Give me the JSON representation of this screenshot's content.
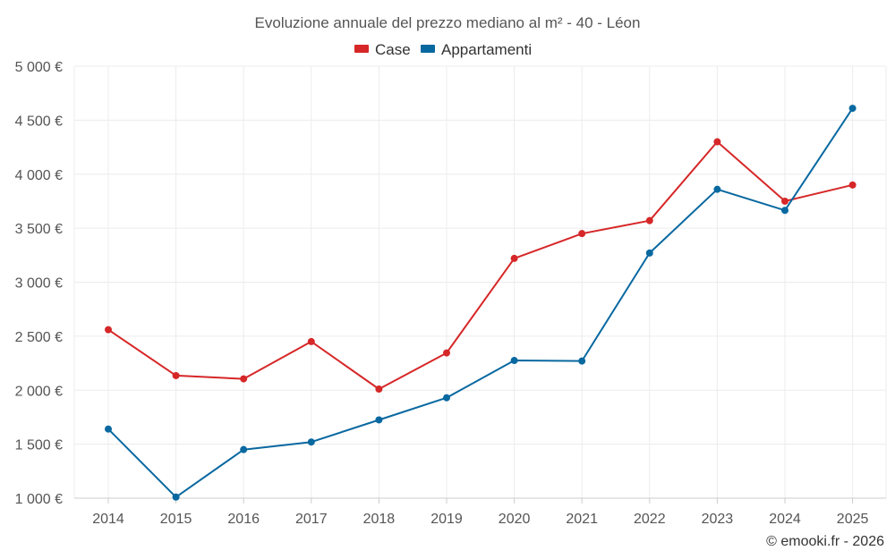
{
  "chart_data": {
    "type": "line",
    "title": "Evoluzione annuale del prezzo mediano al m² - 40 - Léon",
    "xlabel": "",
    "ylabel": "",
    "categories": [
      "2014",
      "2015",
      "2016",
      "2017",
      "2018",
      "2019",
      "2020",
      "2021",
      "2022",
      "2023",
      "2024",
      "2025"
    ],
    "ylim": [
      1000,
      5000
    ],
    "yticks": [
      1000,
      1500,
      2000,
      2500,
      3000,
      3500,
      4000,
      4500,
      5000
    ],
    "ytick_labels": [
      "1 000 €",
      "1 500 €",
      "2 000 €",
      "2 500 €",
      "3 000 €",
      "3 500 €",
      "4 000 €",
      "4 500 €",
      "5 000 €"
    ],
    "grid": true,
    "legend_position": "top-center",
    "series": [
      {
        "name": "Case",
        "color": "#d62728",
        "values": [
          2560,
          2135,
          2105,
          2450,
          2010,
          2345,
          3220,
          3450,
          3570,
          4300,
          3750,
          3900
        ]
      },
      {
        "name": "Appartamenti",
        "color": "#0868a0",
        "values": [
          1640,
          1010,
          1450,
          1520,
          1725,
          1930,
          2275,
          2270,
          3270,
          3860,
          3665,
          4610
        ]
      }
    ],
    "credit": "© emooki.fr - 2026"
  }
}
